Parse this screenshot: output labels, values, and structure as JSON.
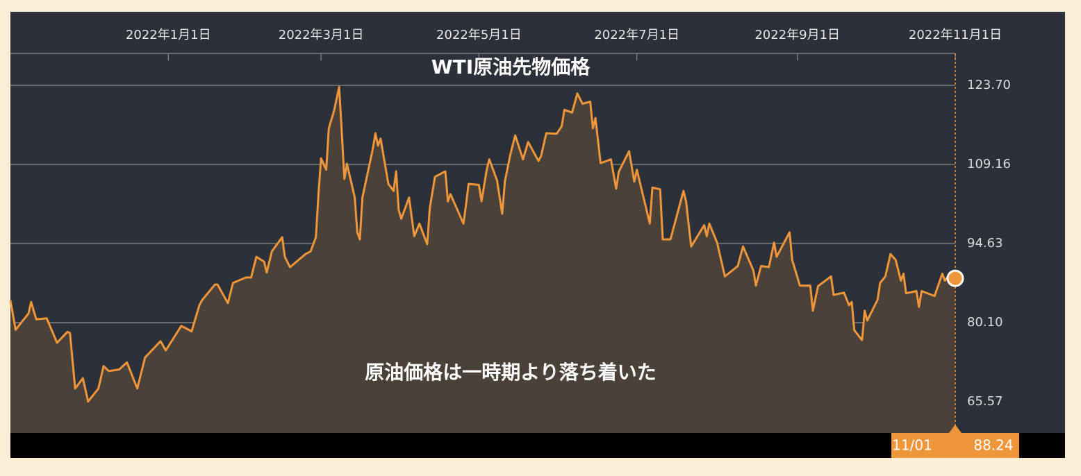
{
  "chart_data": {
    "type": "area",
    "title": "WTI原油先物価格",
    "annotation": "原油価格は一時期より落ち着いた",
    "last_point_label": "11/01",
    "color": "#f0963a",
    "fill": "#4a4139",
    "x": [
      "2021-11-01",
      "2021-11-03",
      "2021-11-08",
      "2021-11-09",
      "2021-11-11",
      "2021-11-15",
      "2021-11-19",
      "2021-11-23",
      "2021-11-24",
      "2021-11-26",
      "2021-11-29",
      "2021-12-01",
      "2021-12-05",
      "2021-12-07",
      "2021-12-09",
      "2021-12-13",
      "2021-12-16",
      "2021-12-20",
      "2021-12-23",
      "2021-12-29",
      "2021-12-31",
      "2022-01-06",
      "2022-01-10",
      "2022-01-13",
      "2022-01-14",
      "2022-01-19",
      "2022-01-20",
      "2022-01-24",
      "2022-01-26",
      "2022-01-31",
      "2022-02-02",
      "2022-02-04",
      "2022-02-07",
      "2022-02-08",
      "2022-02-10",
      "2022-02-14",
      "2022-02-15",
      "2022-02-17",
      "2022-02-23",
      "2022-02-25",
      "2022-02-27",
      "2022-02-28",
      "2022-03-01",
      "2022-03-03",
      "2022-03-04",
      "2022-03-06",
      "2022-03-08",
      "2022-03-09",
      "2022-03-10",
      "2022-03-11",
      "2022-03-14",
      "2022-03-15",
      "2022-03-16",
      "2022-03-17",
      "2022-03-21",
      "2022-03-22",
      "2022-03-23",
      "2022-03-24",
      "2022-03-27",
      "2022-03-29",
      "2022-03-30",
      "2022-03-31",
      "2022-04-01",
      "2022-04-04",
      "2022-04-06",
      "2022-04-08",
      "2022-04-11",
      "2022-04-12",
      "2022-04-14",
      "2022-04-18",
      "2022-04-19",
      "2022-04-20",
      "2022-04-25",
      "2022-04-26",
      "2022-04-27",
      "2022-05-01",
      "2022-05-02",
      "2022-05-04",
      "2022-05-05",
      "2022-05-08",
      "2022-05-10",
      "2022-05-11",
      "2022-05-13",
      "2022-05-15",
      "2022-05-18",
      "2022-05-20",
      "2022-05-24",
      "2022-05-25",
      "2022-05-27",
      "2022-05-31",
      "2022-06-02",
      "2022-06-03",
      "2022-06-06",
      "2022-06-08",
      "2022-06-10",
      "2022-06-13",
      "2022-06-14",
      "2022-06-15",
      "2022-06-17",
      "2022-06-21",
      "2022-06-23",
      "2022-06-24",
      "2022-06-28",
      "2022-06-30",
      "2022-07-01",
      "2022-07-06",
      "2022-07-07",
      "2022-07-10",
      "2022-07-11",
      "2022-07-14",
      "2022-07-19",
      "2022-07-20",
      "2022-07-22",
      "2022-07-27",
      "2022-07-28",
      "2022-07-29",
      "2022-08-01",
      "2022-08-04",
      "2022-08-09",
      "2022-08-11",
      "2022-08-15",
      "2022-08-16",
      "2022-08-18",
      "2022-08-21",
      "2022-08-23",
      "2022-08-24",
      "2022-08-29",
      "2022-08-30",
      "2022-09-02",
      "2022-09-06",
      "2022-09-07",
      "2022-09-09",
      "2022-09-14",
      "2022-09-15",
      "2022-09-19",
      "2022-09-21",
      "2022-09-22",
      "2022-09-23",
      "2022-09-26",
      "2022-09-27",
      "2022-09-28",
      "2022-10-02",
      "2022-10-03",
      "2022-10-05",
      "2022-10-07",
      "2022-10-09",
      "2022-10-11",
      "2022-10-12",
      "2022-10-13",
      "2022-10-17",
      "2022-10-18",
      "2022-10-19",
      "2022-10-24",
      "2022-10-27",
      "2022-10-28",
      "2022-10-30",
      "2022-11-01"
    ],
    "values": [
      84.2,
      78.8,
      81.8,
      83.9,
      80.7,
      80.9,
      76.4,
      78.4,
      78.2,
      68.0,
      69.9,
      65.6,
      68.0,
      72.1,
      71.2,
      71.5,
      72.8,
      68.0,
      73.7,
      76.7,
      75.0,
      79.5,
      78.5,
      83.3,
      84.2,
      87.1,
      87.1,
      83.7,
      87.4,
      88.4,
      88.4,
      92.2,
      91.3,
      89.3,
      93.2,
      95.8,
      92.2,
      90.3,
      92.7,
      93.2,
      95.8,
      103.7,
      110.3,
      108.2,
      115.8,
      119.0,
      123.4,
      115.2,
      106.5,
      109.3,
      103.1,
      96.7,
      95.4,
      103.1,
      112.0,
      114.9,
      112.6,
      113.9,
      105.6,
      104.3,
      107.9,
      100.8,
      99.2,
      103.1,
      96.0,
      98.3,
      94.5,
      101.1,
      106.9,
      107.9,
      102.4,
      103.7,
      98.3,
      101.8,
      105.6,
      105.4,
      102.4,
      108.2,
      110.1,
      106.2,
      100.1,
      106.0,
      110.7,
      114.5,
      110.1,
      113.3,
      109.8,
      110.7,
      114.9,
      114.8,
      116.2,
      119.2,
      118.7,
      122.2,
      120.3,
      120.7,
      115.8,
      117.7,
      109.4,
      110.1,
      104.7,
      107.8,
      111.6,
      106.0,
      108.2,
      98.3,
      104.9,
      104.6,
      95.4,
      95.4,
      104.3,
      102.4,
      94.1,
      98.0,
      96.0,
      98.3,
      94.8,
      88.6,
      90.5,
      94.1,
      89.7,
      86.9,
      90.5,
      90.3,
      94.8,
      92.2,
      96.7,
      91.6,
      86.9,
      86.9,
      82.3,
      86.8,
      88.6,
      85.2,
      85.6,
      83.3,
      83.9,
      78.7,
      76.9,
      82.3,
      80.5,
      84.3,
      87.4,
      88.6,
      92.7,
      91.6,
      87.8,
      89.1,
      85.5,
      85.9,
      83.0,
      85.9,
      85.0,
      89.1,
      87.8,
      89.1,
      88.24
    ],
    "xlim": [
      "2021-11-01",
      "2022-11-01"
    ],
    "xticks": [
      {
        "value": "2022-01-01",
        "label": "2022年1月1日"
      },
      {
        "value": "2022-03-01",
        "label": "2022年3月1日"
      },
      {
        "value": "2022-05-01",
        "label": "2022年5月1日"
      },
      {
        "value": "2022-07-01",
        "label": "2022年7月1日"
      },
      {
        "value": "2022-09-01",
        "label": "2022年9月1日"
      },
      {
        "value": "2022-11-01",
        "label": "2022年11月1日"
      }
    ],
    "ylim": [
      59.83,
      129.56
    ],
    "yticks": [
      {
        "value": 65.57,
        "label": "65.57"
      },
      {
        "value": 80.1,
        "label": "80.10"
      },
      {
        "value": 94.63,
        "label": "94.63"
      },
      {
        "value": 109.16,
        "label": "109.16"
      },
      {
        "value": 123.7,
        "label": "123.70"
      }
    ],
    "grid": true
  }
}
